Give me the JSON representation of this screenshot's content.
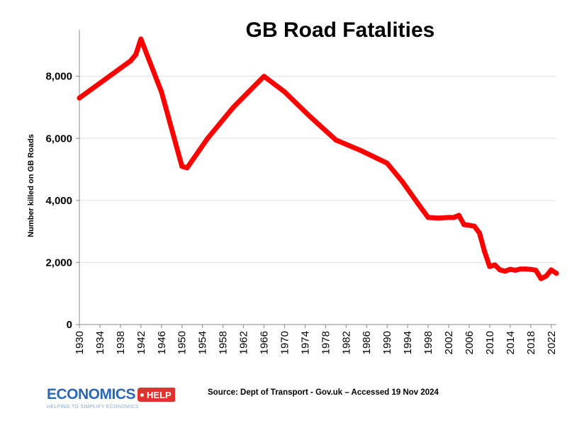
{
  "chart_data": {
    "type": "line",
    "title": "GB Road Fatalities",
    "xlabel": "",
    "ylabel": "Number killed on GB Roads",
    "xlim": [
      1930,
      2023
    ],
    "ylim": [
      0,
      9500
    ],
    "yticks": [
      0,
      2000,
      4000,
      6000,
      8000
    ],
    "ytick_labels": [
      "0",
      "2,000",
      "4,000",
      "6,000",
      "8,000"
    ],
    "xticks": [
      1930,
      1934,
      1938,
      1942,
      1946,
      1950,
      1954,
      1958,
      1962,
      1966,
      1970,
      1974,
      1978,
      1982,
      1986,
      1990,
      1994,
      1998,
      2002,
      2006,
      2010,
      2014,
      2018,
      2022
    ],
    "grid": "horizontal",
    "legend": "none",
    "series": [
      {
        "color": "#ff0000",
        "x": [
          1930,
          1935,
          1940,
          1941,
          1942,
          1946,
          1950,
          1951,
          1955,
          1960,
          1966,
          1970,
          1975,
          1980,
          1985,
          1990,
          1993,
          1996,
          1998,
          2000,
          2002,
          2003,
          2004,
          2005,
          2006,
          2007,
          2008,
          2009,
          2010,
          2011,
          2012,
          2013,
          2014,
          2015,
          2016,
          2017,
          2018,
          2019,
          2020,
          2021,
          2022,
          2023
        ],
        "y": [
          7300,
          7900,
          8500,
          8700,
          9200,
          7500,
          5100,
          5050,
          6000,
          7000,
          8000,
          7500,
          6700,
          5950,
          5600,
          5200,
          4600,
          3900,
          3450,
          3430,
          3450,
          3450,
          3520,
          3220,
          3200,
          3170,
          2950,
          2350,
          1870,
          1920,
          1760,
          1720,
          1780,
          1750,
          1790,
          1790,
          1780,
          1750,
          1480,
          1560,
          1760,
          1650
        ]
      }
    ]
  },
  "source": "Source: Dept of Transport - Gov.uk – Accessed 19 Nov 2024",
  "logo": {
    "word": "ECONOMICS",
    "tag": "HELP",
    "tagline": "HELPING TO SIMPLIFY ECONOMICS",
    "colors": {
      "word": "#2a67b7",
      "tag": "#e0322e"
    }
  }
}
